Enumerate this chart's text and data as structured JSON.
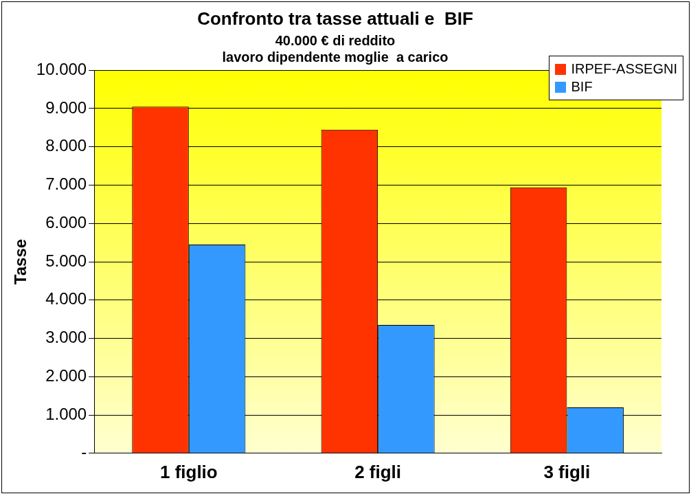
{
  "chart_data": {
    "type": "bar",
    "title": "Confronto tra tasse attuali e  BIF",
    "subtitle": "40.000 € di reddito\nlavoro dipendente moglie  a carico",
    "ylabel": "Tasse",
    "categories": [
      "1 figlio",
      "2 figli",
      "3 figli"
    ],
    "series": [
      {
        "name": "IRPEF-ASSEGNI",
        "color": "#ff3300",
        "values": [
          9050,
          8450,
          6940
        ]
      },
      {
        "name": "BIF",
        "color": "#3399ff",
        "values": [
          5450,
          3350,
          1200
        ]
      }
    ],
    "ylim": [
      0,
      10000
    ],
    "yticks": [
      {
        "value": 0,
        "label": "-"
      },
      {
        "value": 1000,
        "label": "1.000"
      },
      {
        "value": 2000,
        "label": "2.000"
      },
      {
        "value": 3000,
        "label": "3.000"
      },
      {
        "value": 4000,
        "label": "4.000"
      },
      {
        "value": 5000,
        "label": "5.000"
      },
      {
        "value": 6000,
        "label": "6.000"
      },
      {
        "value": 7000,
        "label": "7.000"
      },
      {
        "value": 8000,
        "label": "8.000"
      },
      {
        "value": 9000,
        "label": "9.000"
      },
      {
        "value": 10000,
        "label": "10.000"
      }
    ],
    "grid": "y",
    "legend": "top right"
  }
}
